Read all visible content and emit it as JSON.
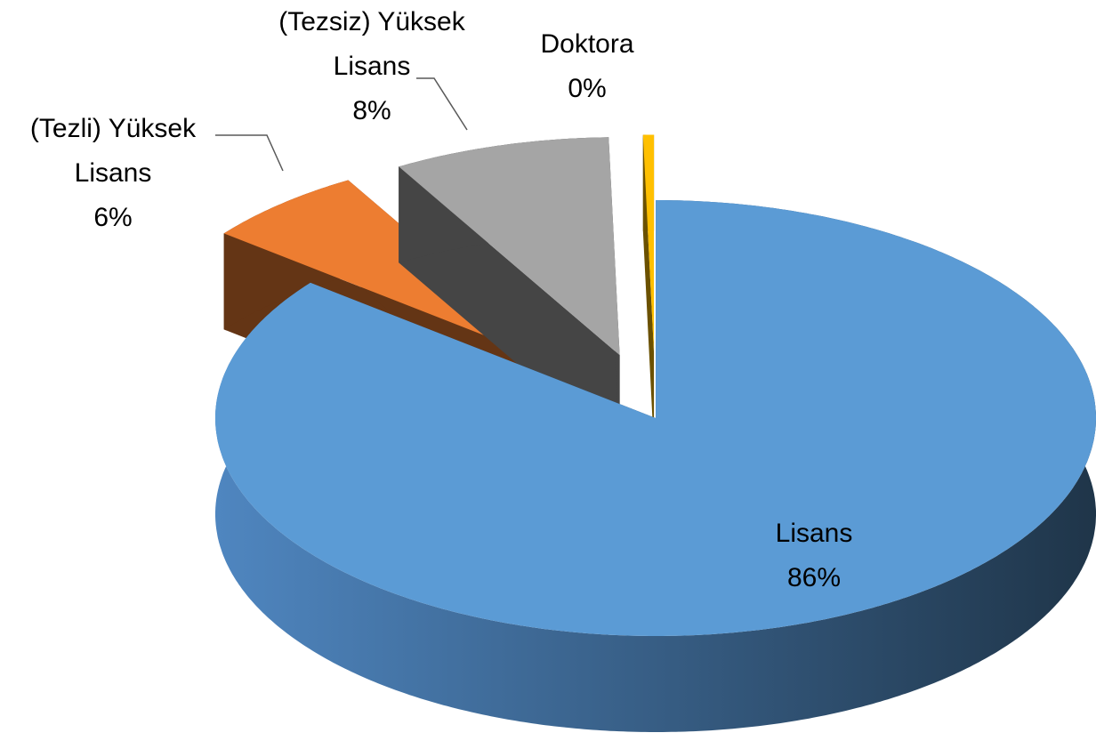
{
  "chart_data": {
    "type": "pie",
    "categories": [
      "Lisans",
      "(Tezli) Yüksek Lisans",
      "(Tezsiz) Yüksek Lisans",
      "Doktora"
    ],
    "values": [
      86,
      6,
      8,
      0.4
    ],
    "value_labels": [
      "86%",
      "6%",
      "8%",
      "0%"
    ],
    "colors": [
      "#5b9bd5",
      "#ed7d31",
      "#a5a5a5",
      "#ffc000"
    ]
  }
}
